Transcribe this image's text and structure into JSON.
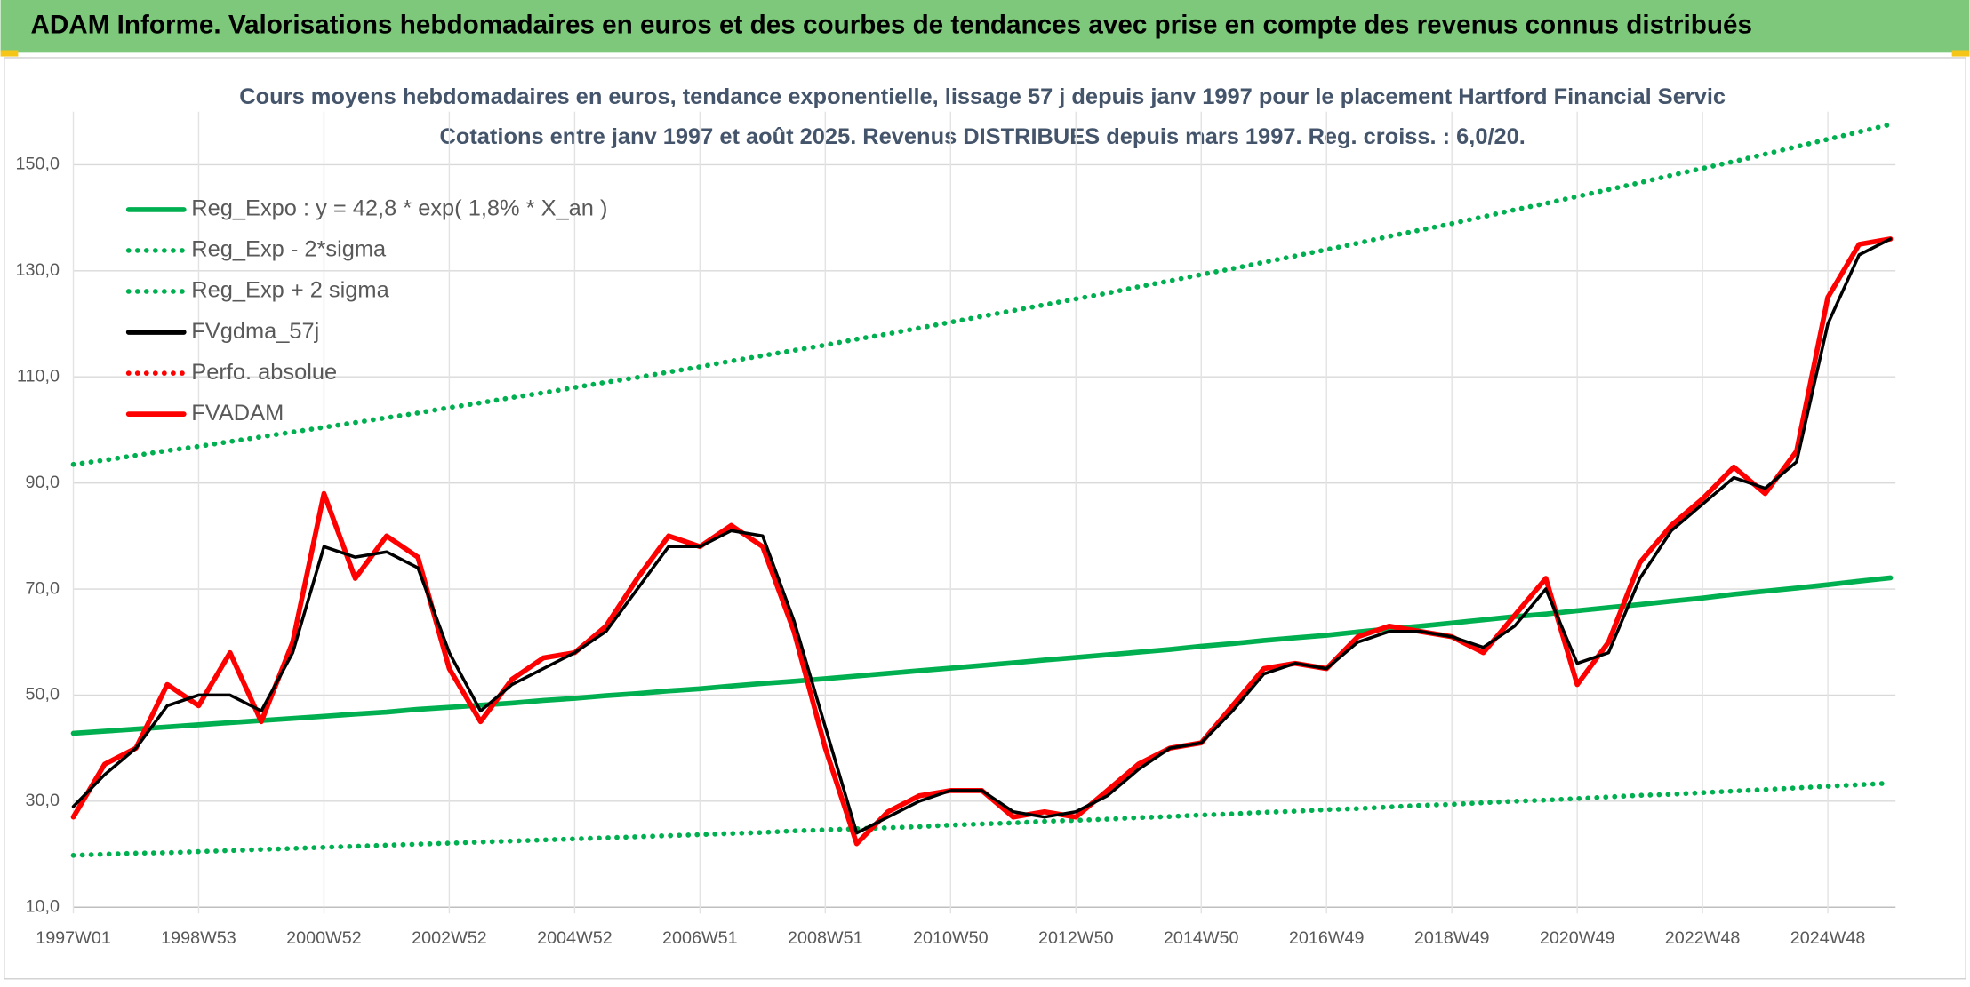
{
  "header": "ADAM Informe. Valorisations hebdomadaires en euros et des courbes de tendances avec prise en compte des revenus connus distribués",
  "chart_data": {
    "type": "line",
    "title": "Cours moyens hebdomadaires en euros, tendance exponentielle, lissage 57 j depuis janv 1997 pour le placement Hartford Financial Servic",
    "subtitle": "Cotations entre janv 1997 et août 2025. Revenus DISTRIBUES depuis mars 1997. Reg. croiss. : 6,0/20.",
    "categories": [
      "1997W01",
      null,
      null,
      null,
      "1998W53",
      null,
      null,
      null,
      "2000W52",
      null,
      null,
      null,
      "2002W52",
      null,
      null,
      null,
      "2004W52",
      null,
      null,
      null,
      "2006W51",
      null,
      null,
      null,
      "2008W51",
      null,
      null,
      null,
      "2010W50",
      null,
      null,
      null,
      "2012W50",
      null,
      null,
      null,
      "2014W50",
      null,
      null,
      null,
      "2016W49",
      null,
      null,
      null,
      "2018W49",
      null,
      null,
      null,
      "2020W49",
      null,
      null,
      null,
      "2022W48",
      null,
      null,
      null,
      "2024W48",
      null,
      null
    ],
    "ylim": [
      10,
      160
    ],
    "yticks": [
      {
        "value": 10,
        "label": "10,0"
      },
      {
        "value": 30,
        "label": "30,0"
      },
      {
        "value": 50,
        "label": "50,0"
      },
      {
        "value": 70,
        "label": "70,0"
      },
      {
        "value": 90,
        "label": "90,0"
      },
      {
        "value": 110,
        "label": "110,0"
      },
      {
        "value": 130,
        "label": "130,0"
      },
      {
        "value": 150,
        "label": "150,0"
      }
    ],
    "grid": true,
    "legend": "upper-left",
    "series": [
      {
        "name": "Reg_Expo : y = 42,8 * exp( 1,8% *  X_an )",
        "color": "#00b050",
        "line_style": "solid",
        "values": [
          42.8,
          43.2,
          43.6,
          44.0,
          44.4,
          44.8,
          45.2,
          45.6,
          46.0,
          46.4,
          46.8,
          47.3,
          47.7,
          48.1,
          48.5,
          49.0,
          49.4,
          49.9,
          50.3,
          50.8,
          51.2,
          51.7,
          52.2,
          52.6,
          53.1,
          53.6,
          54.1,
          54.6,
          55.1,
          55.6,
          56.1,
          56.6,
          57.1,
          57.6,
          58.1,
          58.6,
          59.2,
          59.7,
          60.3,
          60.8,
          61.3,
          61.9,
          62.5,
          63.0,
          63.6,
          64.2,
          64.8,
          65.3,
          65.9,
          66.5,
          67.1,
          67.7,
          68.3,
          69.0,
          69.6,
          70.2,
          70.8,
          71.5,
          72.1
        ]
      },
      {
        "name": "Reg_Exp - 2*sigma",
        "color": "#00b050",
        "line_style": "dotted",
        "values": [
          19.8,
          20.0,
          20.2,
          20.3,
          20.5,
          20.7,
          20.9,
          21.1,
          21.3,
          21.5,
          21.7,
          21.9,
          22.1,
          22.3,
          22.5,
          22.7,
          22.9,
          23.1,
          23.3,
          23.5,
          23.7,
          23.9,
          24.1,
          24.4,
          24.6,
          24.8,
          25.0,
          25.2,
          25.5,
          25.7,
          25.9,
          26.2,
          26.4,
          26.6,
          26.9,
          27.1,
          27.4,
          27.6,
          27.9,
          28.1,
          28.4,
          28.6,
          28.9,
          29.2,
          29.4,
          29.7,
          30.0,
          30.2,
          30.5,
          30.8,
          31.1,
          31.3,
          31.6,
          31.9,
          32.2,
          32.5,
          32.8,
          33.1,
          33.4
        ]
      },
      {
        "name": "Reg_Exp + 2 sigma",
        "color": "#00b050",
        "line_style": "dotted",
        "values": [
          93.5,
          94.3,
          95.2,
          96.1,
          96.9,
          97.8,
          98.7,
          99.6,
          100.5,
          101.4,
          102.3,
          103.2,
          104.2,
          105.1,
          106.1,
          107.0,
          108.0,
          109.0,
          109.9,
          110.9,
          111.9,
          113.0,
          114.0,
          115.0,
          116.0,
          117.1,
          118.1,
          119.2,
          120.3,
          121.4,
          122.5,
          123.6,
          124.7,
          125.8,
          127.0,
          128.1,
          129.3,
          130.4,
          131.6,
          132.8,
          134.0,
          135.2,
          136.5,
          137.7,
          138.9,
          140.2,
          141.5,
          142.7,
          144.0,
          145.3,
          146.6,
          148.0,
          149.3,
          150.6,
          152.0,
          153.4,
          154.8,
          156.2,
          157.6
        ]
      },
      {
        "name": "FVgdma_57j",
        "color": "#000000",
        "line_style": "solid",
        "values": [
          29,
          35,
          40,
          48,
          50,
          50,
          47,
          58,
          78,
          76,
          77,
          74,
          58,
          47,
          52,
          55,
          58,
          62,
          70,
          78,
          78,
          81,
          80,
          64,
          44,
          24,
          27,
          30,
          32,
          32,
          28,
          27,
          28,
          31,
          36,
          40,
          41,
          47,
          54,
          56,
          55,
          60,
          62,
          62,
          61,
          59,
          63,
          70,
          56,
          58,
          72,
          81,
          86,
          91,
          89,
          94,
          120,
          133,
          136
        ]
      },
      {
        "name": "Perfo. absolue",
        "color": "#ff0000",
        "line_style": "dotted",
        "values": [
          null,
          null,
          null,
          null,
          null,
          null,
          null,
          null,
          null,
          null,
          null,
          null,
          null,
          null,
          null,
          null,
          null,
          null,
          null,
          null,
          null,
          null,
          null,
          null,
          null,
          null,
          null,
          null,
          null,
          null,
          null,
          null,
          null,
          null,
          null,
          null,
          null,
          null,
          null,
          null,
          null,
          null,
          null,
          null,
          null,
          null,
          null,
          null,
          null,
          null,
          null,
          null,
          null,
          null,
          null,
          null,
          null,
          null,
          null
        ]
      },
      {
        "name": "FVADAM",
        "color": "#ff0000",
        "line_style": "solid",
        "values": [
          27,
          37,
          40,
          52,
          48,
          58,
          45,
          60,
          88,
          72,
          80,
          76,
          55,
          45,
          53,
          57,
          58,
          63,
          72,
          80,
          78,
          82,
          78,
          62,
          40,
          22,
          28,
          31,
          32,
          32,
          27,
          28,
          27,
          32,
          37,
          40,
          41,
          48,
          55,
          56,
          55,
          61,
          63,
          62,
          61,
          58,
          65,
          72,
          52,
          60,
          75,
          82,
          87,
          93,
          88,
          96,
          125,
          135,
          136
        ]
      }
    ]
  }
}
